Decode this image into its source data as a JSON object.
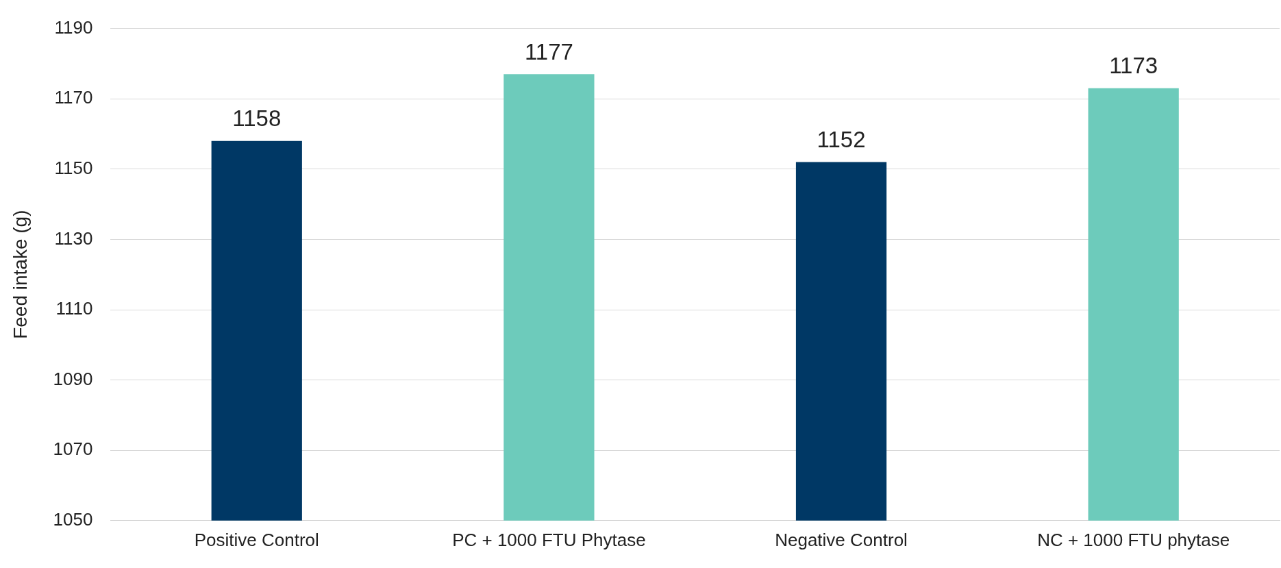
{
  "chart_data": {
    "type": "bar",
    "ylabel": "Feed intake (g)",
    "categories": [
      "Positive Control",
      "PC + 1000 FTU Phytase",
      "Negative Control",
      "NC + 1000 FTU phytase"
    ],
    "values": [
      1158,
      1177,
      1152,
      1173
    ],
    "colors": [
      "#003865",
      "#6dcbbb",
      "#003865",
      "#6dcbbb"
    ],
    "ylim": [
      1050,
      1190
    ],
    "yticks": [
      1050,
      1070,
      1090,
      1110,
      1130,
      1150,
      1170,
      1190
    ],
    "grid": "y",
    "legend": false,
    "data_labels": true
  }
}
